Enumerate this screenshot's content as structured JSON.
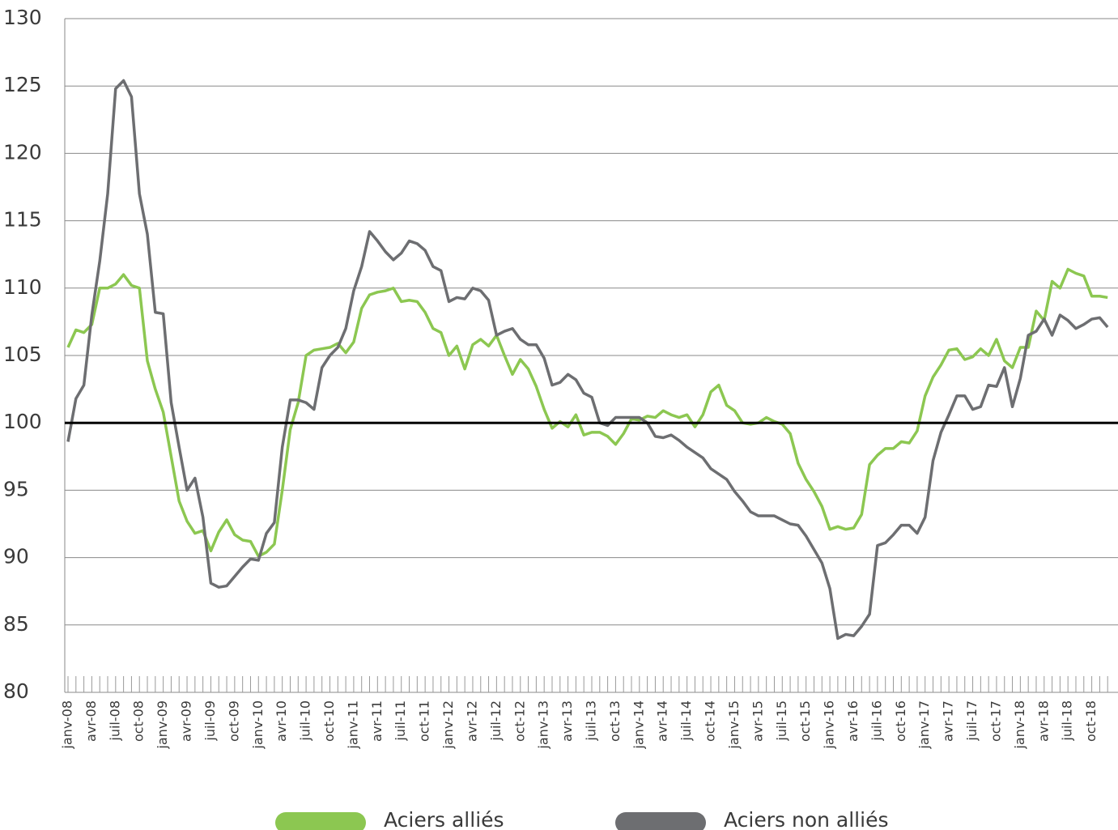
{
  "chart_data": {
    "type": "line",
    "categories": [
      "janv-08",
      null,
      null,
      "avr-08",
      null,
      null,
      "juil-08",
      null,
      null,
      "oct-08",
      null,
      null,
      "janv-09",
      null,
      null,
      "avr-09",
      null,
      null,
      "juil-09",
      null,
      null,
      "oct-09",
      null,
      null,
      "janv-10",
      null,
      null,
      "avr-10",
      null,
      null,
      "juil-10",
      null,
      null,
      "oct-10",
      null,
      null,
      "janv-11",
      null,
      null,
      "avr-11",
      null,
      null,
      "juil-11",
      null,
      null,
      "oct-11",
      null,
      null,
      "janv-12",
      null,
      null,
      "avr-12",
      null,
      null,
      "juil-12",
      null,
      null,
      "oct-12",
      null,
      null,
      "janv-13",
      null,
      null,
      "avr-13",
      null,
      null,
      "juil-13",
      null,
      null,
      "oct-13",
      null,
      null,
      "janv-14",
      null,
      null,
      "avr-14",
      null,
      null,
      "juil-14",
      null,
      null,
      "oct-14",
      null,
      null,
      "janv-15",
      null,
      null,
      "avr-15",
      null,
      null,
      "juil-15",
      null,
      null,
      "oct-15",
      null,
      null,
      "janv-16",
      null,
      null,
      "avr-16",
      null,
      null,
      "juil-16",
      null,
      null,
      "oct-16",
      null,
      null,
      "janv-17",
      null,
      null,
      "avr-17",
      null,
      null,
      "juil-17",
      null,
      null,
      "oct-17",
      null,
      null,
      "janv-18",
      null,
      null,
      "avr-18",
      null,
      null,
      "juil-18",
      null,
      null,
      "oct-18",
      null,
      null
    ],
    "series": [
      {
        "name": "Aciers alliés",
        "color": "#8cc751",
        "values": [
          105.6,
          106.9,
          106.7,
          107.3,
          110,
          110,
          110.3,
          111,
          110.2,
          110,
          104.6,
          102.5,
          100.8,
          97.5,
          94.2,
          92.7,
          91.8,
          92,
          90.5,
          91.9,
          92.8,
          91.7,
          91.3,
          91.2,
          90.1,
          90.4,
          91,
          95,
          99.5,
          101.5,
          105,
          105.4,
          105.5,
          105.6,
          105.9,
          105.2,
          106,
          108.5,
          109.5,
          109.7,
          109.8,
          110,
          109,
          109.1,
          109,
          108.2,
          107,
          106.7,
          105,
          105.7,
          104,
          105.8,
          106.2,
          105.7,
          106.5,
          105,
          103.6,
          104.7,
          104,
          102.7,
          101,
          99.6,
          100.1,
          99.7,
          100.6,
          99.1,
          99.3,
          99.3,
          99,
          98.4,
          99.2,
          100.3,
          100.2,
          100.5,
          100.4,
          100.9,
          100.6,
          100.4,
          100.6,
          99.7,
          100.6,
          102.3,
          102.8,
          101.3,
          100.9,
          100,
          99.9,
          100,
          100.4,
          100.1,
          99.9,
          99.2,
          97,
          95.8,
          94.9,
          93.8,
          92.1,
          92.3,
          92.1,
          92.2,
          93.2,
          96.9,
          97.6,
          98.1,
          98.1,
          98.6,
          98.5,
          99.4,
          102,
          103.4,
          104.3,
          105.4,
          105.5,
          104.7,
          104.9,
          105.5,
          105,
          106.2,
          104.6,
          104.1,
          105.6,
          105.6,
          108.3,
          107.6,
          110.5,
          110,
          111.4,
          111.1,
          110.9,
          109.4,
          109.4,
          109.3
        ]
      },
      {
        "name": "Aciers non alliés",
        "color": "#6d6e71",
        "values": [
          98.6,
          101.8,
          102.8,
          108,
          112,
          117,
          124.8,
          125.4,
          124.2,
          117,
          114,
          108.2,
          108.1,
          101.5,
          98.2,
          95,
          95.9,
          93,
          88.1,
          87.8,
          87.9,
          88.6,
          89.3,
          89.9,
          89.8,
          91.8,
          92.6,
          98.2,
          101.7,
          101.7,
          101.5,
          101,
          104.1,
          105,
          105.6,
          107,
          109.8,
          111.6,
          114.2,
          113.5,
          112.7,
          112.1,
          112.6,
          113.5,
          113.3,
          112.8,
          111.6,
          111.3,
          109,
          109.3,
          109.2,
          110,
          109.8,
          109.1,
          106.5,
          106.8,
          107,
          106.2,
          105.8,
          105.8,
          104.8,
          102.8,
          103,
          103.6,
          103.2,
          102.2,
          101.9,
          100,
          99.8,
          100.4,
          100.4,
          100.4,
          100.4,
          100,
          99,
          98.9,
          99.1,
          98.7,
          98.2,
          97.8,
          97.4,
          96.6,
          96.2,
          95.8,
          94.9,
          94.2,
          93.4,
          93.1,
          93.1,
          93.1,
          92.8,
          92.5,
          92.4,
          91.6,
          90.6,
          89.6,
          87.7,
          84,
          84.3,
          84.2,
          84.9,
          85.8,
          90.9,
          91.1,
          91.7,
          92.4,
          92.4,
          91.8,
          93,
          97.2,
          99.3,
          100.6,
          102,
          102,
          101,
          101.2,
          102.8,
          102.7,
          104.1,
          101.2,
          103.3,
          106.5,
          106.8,
          107.7,
          106.5,
          108,
          107.6,
          107,
          107.3,
          107.7,
          107.8,
          107.1
        ]
      }
    ],
    "ylim": [
      80,
      130
    ],
    "yticks": [
      80,
      85,
      90,
      95,
      100,
      105,
      110,
      115,
      120,
      125,
      130
    ],
    "grid": true,
    "reference_line": 100,
    "legend": "bottom"
  }
}
